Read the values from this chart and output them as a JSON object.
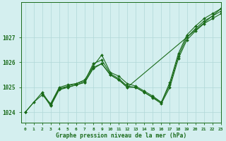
{
  "title": "Graphe pression niveau de la mer (hPa)",
  "background_color": "#d4efef",
  "grid_color": "#b0d8d8",
  "line_color": "#1a6b1a",
  "xlim": [
    -0.5,
    23
  ],
  "ylim": [
    1023.6,
    1028.4
  ],
  "yticks": [
    1024,
    1025,
    1026,
    1027
  ],
  "xticks": [
    0,
    1,
    2,
    3,
    4,
    5,
    6,
    7,
    8,
    9,
    10,
    11,
    12,
    13,
    14,
    15,
    16,
    17,
    18,
    19,
    20,
    21,
    22,
    23
  ],
  "series": [
    {
      "x": [
        0,
        1,
        2,
        3,
        4,
        5,
        6,
        7,
        8,
        9,
        10,
        11,
        12,
        13,
        14,
        15,
        16,
        17,
        18,
        19,
        20,
        21,
        22,
        23
      ],
      "y": [
        1024.0,
        1024.4,
        1024.7,
        1024.35,
        1025.0,
        1025.1,
        1025.15,
        1025.25,
        1025.95,
        1026.1,
        1025.55,
        1025.35,
        1025.05,
        1025.0,
        1024.8,
        1024.6,
        1024.4,
        1025.2,
        1026.35,
        1027.1,
        1027.45,
        1027.75,
        1027.95,
        1028.15
      ]
    },
    {
      "x": [
        0,
        2,
        3,
        4,
        5,
        6,
        7,
        8,
        9,
        10,
        11,
        12,
        13,
        14,
        15,
        16,
        17,
        18,
        19,
        20,
        21,
        22,
        23
      ],
      "y": [
        1024.0,
        1024.8,
        1024.3,
        1024.95,
        1025.05,
        1025.15,
        1025.3,
        1025.85,
        1026.3,
        1025.6,
        1025.45,
        1025.15,
        1025.05,
        1024.85,
        1024.65,
        1024.4,
        1025.1,
        1026.25,
        1027.0,
        1027.35,
        1027.65,
        1027.85,
        1028.05
      ]
    },
    {
      "x": [
        2,
        3,
        4,
        5,
        6,
        7,
        8,
        9,
        10,
        11,
        12,
        13,
        14,
        15,
        16,
        17,
        18,
        19,
        20,
        21,
        22,
        23
      ],
      "y": [
        1024.75,
        1024.25,
        1024.9,
        1025.0,
        1025.1,
        1025.2,
        1025.8,
        1025.95,
        1025.5,
        1025.3,
        1025.0,
        1025.0,
        1024.8,
        1024.58,
        1024.35,
        1025.0,
        1026.15,
        1026.9,
        1027.25,
        1027.55,
        1027.75,
        1027.95
      ]
    },
    {
      "x": [
        3,
        4,
        5,
        6,
        7,
        8,
        9,
        10,
        11,
        12,
        23
      ],
      "y": [
        1024.3,
        1024.95,
        1025.0,
        1025.1,
        1025.2,
        1025.75,
        1025.95,
        1025.5,
        1025.3,
        1025.0,
        1028.15
      ]
    }
  ]
}
